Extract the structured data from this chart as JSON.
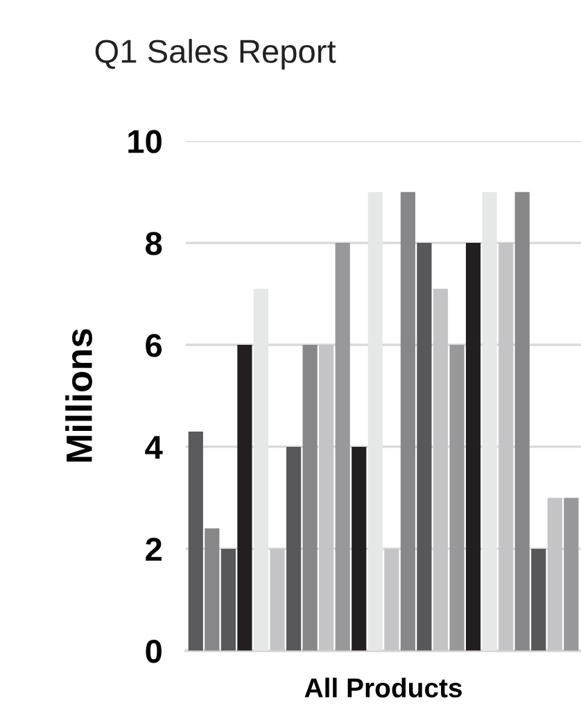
{
  "chart_data": {
    "type": "bar",
    "title": "Q1 Sales Report",
    "ylabel": "Millions",
    "xlabel": "All Products",
    "categories": [
      null,
      null,
      null,
      null,
      null,
      null,
      null,
      null,
      null,
      null,
      null,
      null,
      null,
      null,
      null,
      null,
      null,
      null,
      null,
      null,
      null,
      null,
      null,
      null
    ],
    "values": [
      4.3,
      2.4,
      2.0,
      6.0,
      7.1,
      2.0,
      4.0,
      6.0,
      6.0,
      8.0,
      4.0,
      9.0,
      2.0,
      9.0,
      8.0,
      7.1,
      6.0,
      8.0,
      9.0,
      8.0,
      9.0,
      2.0,
      3.0,
      3.0
    ],
    "colors": [
      "#5a5a5c",
      "#87878a",
      "#58585a",
      "#231f20",
      "#e6e7e7",
      "#c4c4c6",
      "#58585a",
      "#87878a",
      "#c4c4c6",
      "#98989b",
      "#231f20",
      "#e6e7e7",
      "#c4c4c6",
      "#87878a",
      "#58585a",
      "#c4c4c6",
      "#98989b",
      "#231f20",
      "#e6e7e7",
      "#c4c4c6",
      "#87878a",
      "#58585a",
      "#c4c4c6",
      "#98989b"
    ],
    "ylim": [
      0,
      10
    ],
    "yticks": [
      0,
      2,
      4,
      6,
      8,
      10
    ],
    "grid": "y"
  }
}
